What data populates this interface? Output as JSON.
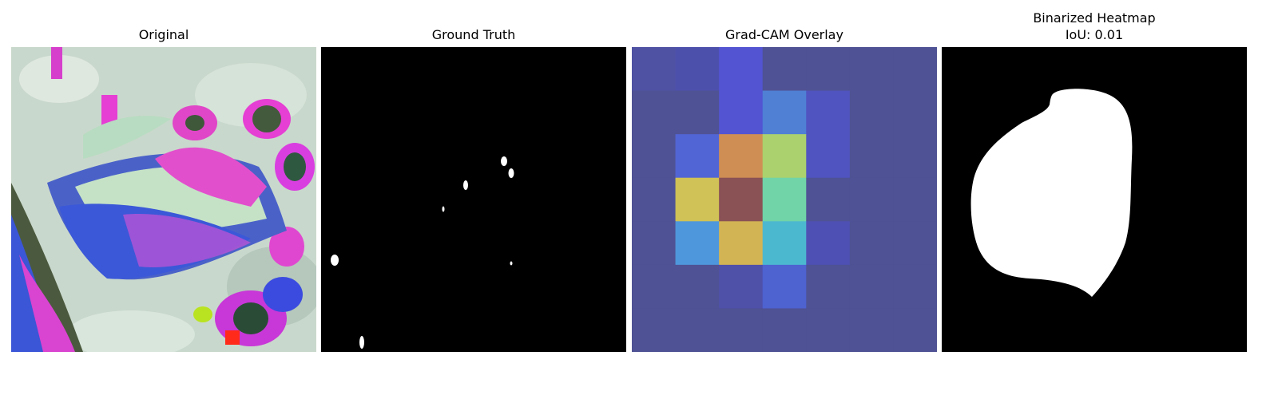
{
  "figure": {
    "panels": [
      {
        "title": "Original"
      },
      {
        "title": "Ground Truth"
      },
      {
        "title": "Grad-CAM Overlay"
      },
      {
        "title": "Binarized Heatmap",
        "subtitle": "IoU: 0.01"
      }
    ]
  },
  "gradcam": {
    "grid_rows": 7,
    "grid_cols": 7,
    "cell_colors": [
      [
        "#4f52a3",
        "#4d50ab",
        "#5254d2",
        "#4f5294",
        "#4f5294",
        "#4f5294",
        "#4f5294"
      ],
      [
        "#4f5294",
        "#4f5294",
        "#5254d2",
        "#4f80d4",
        "#5054c0",
        "#4f5294",
        "#4f5294"
      ],
      [
        "#4f5294",
        "#5265d4",
        "#cf8e54",
        "#abd16e",
        "#5054c0",
        "#4f5294",
        "#4f5294"
      ],
      [
        "#4f5294",
        "#d0c256",
        "#8a5255",
        "#70d4a8",
        "#4f5294",
        "#4f5294",
        "#4f5294"
      ],
      [
        "#4f5294",
        "#4f97dc",
        "#d3b454",
        "#4cb8d0",
        "#4f50b3",
        "#4f5294",
        "#4f5294"
      ],
      [
        "#4f5294",
        "#4f5294",
        "#4f50a8",
        "#4e62d0",
        "#4f5294",
        "#4f5294",
        "#4f5294"
      ],
      [
        "#4f5294",
        "#4f5294",
        "#4f5294",
        "#4f5294",
        "#4f5294",
        "#4f5294",
        "#4f5294"
      ]
    ]
  }
}
